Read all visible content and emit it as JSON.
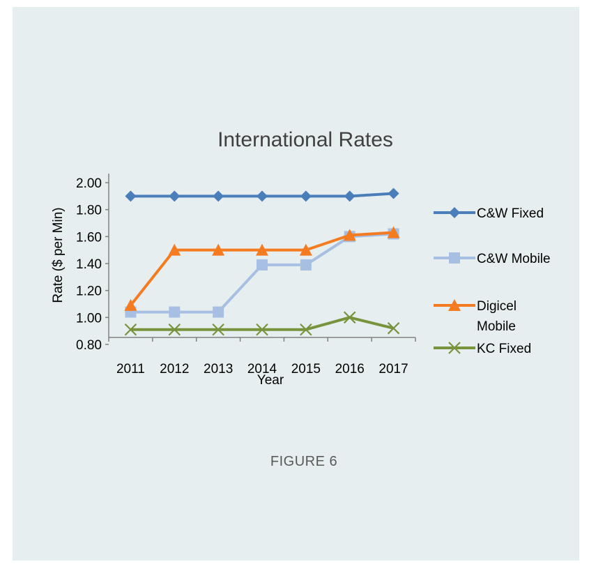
{
  "caption": "FIGURE 6",
  "chart_data": {
    "type": "line",
    "title": "International Rates",
    "xlabel": "Year",
    "ylabel": "Rate ($ per Min)",
    "categories": [
      "2011",
      "2012",
      "2013",
      "2014",
      "2015",
      "2016",
      "2017"
    ],
    "ylim": [
      0.8,
      2.0
    ],
    "yticks": [
      "0.80",
      "1.00",
      "1.20",
      "1.40",
      "1.60",
      "1.80",
      "2.00"
    ],
    "grid": false,
    "legend_position": "right",
    "series": [
      {
        "name": "C&W Fixed",
        "values": [
          1.9,
          1.9,
          1.9,
          1.9,
          1.9,
          1.9,
          1.92
        ],
        "color": "#4a7ebb",
        "marker": "diamond"
      },
      {
        "name": "C&W Mobile",
        "values": [
          1.04,
          1.04,
          1.04,
          1.39,
          1.39,
          1.6,
          1.62
        ],
        "color": "#a6bfe2",
        "marker": "square"
      },
      {
        "name": "Digicel Mobile",
        "legend_lines": [
          "Digicel",
          "Mobile"
        ],
        "values": [
          1.09,
          1.5,
          1.5,
          1.5,
          1.5,
          1.61,
          1.63
        ],
        "color": "#f47b20",
        "marker": "triangle"
      },
      {
        "name": "KC Fixed",
        "values": [
          0.91,
          0.91,
          0.91,
          0.91,
          0.91,
          1.0,
          0.92
        ],
        "color": "#77933c",
        "marker": "x"
      }
    ]
  }
}
